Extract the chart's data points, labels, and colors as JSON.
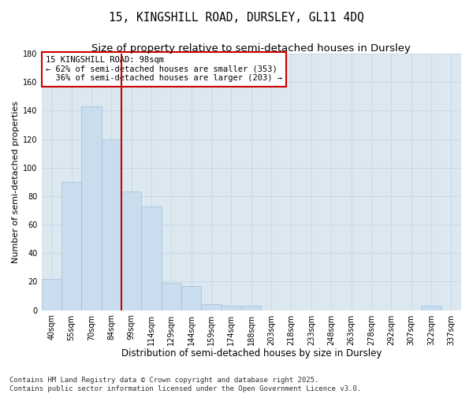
{
  "title": "15, KINGSHILL ROAD, DURSLEY, GL11 4DQ",
  "subtitle": "Size of property relative to semi-detached houses in Dursley",
  "xlabel": "Distribution of semi-detached houses by size in Dursley",
  "ylabel": "Number of semi-detached properties",
  "bins": [
    "40sqm",
    "55sqm",
    "70sqm",
    "84sqm",
    "99sqm",
    "114sqm",
    "129sqm",
    "144sqm",
    "159sqm",
    "174sqm",
    "188sqm",
    "203sqm",
    "218sqm",
    "233sqm",
    "248sqm",
    "263sqm",
    "278sqm",
    "292sqm",
    "307sqm",
    "322sqm",
    "337sqm"
  ],
  "values": [
    22,
    90,
    143,
    120,
    83,
    73,
    19,
    17,
    4,
    3,
    3,
    0,
    0,
    0,
    0,
    0,
    0,
    0,
    0,
    3,
    0
  ],
  "bar_color": "#c9ddef",
  "bar_edge_color": "#a0bdd8",
  "grid_color": "#c8d8e8",
  "background_color": "#dce8f0",
  "vline_x": 4,
  "vline_color": "#cc0000",
  "annotation_text": "15 KINGSHILL ROAD: 98sqm\n← 62% of semi-detached houses are smaller (353)\n  36% of semi-detached houses are larger (203) →",
  "annotation_box_color": "#cc0000",
  "ylim": [
    0,
    180
  ],
  "yticks": [
    0,
    20,
    40,
    60,
    80,
    100,
    120,
    140,
    160,
    180
  ],
  "footer": "Contains HM Land Registry data © Crown copyright and database right 2025.\nContains public sector information licensed under the Open Government Licence v3.0.",
  "title_fontsize": 10.5,
  "subtitle_fontsize": 9.5,
  "xlabel_fontsize": 8.5,
  "ylabel_fontsize": 8,
  "tick_fontsize": 7,
  "footer_fontsize": 6.5,
  "annotation_fontsize": 7.5
}
